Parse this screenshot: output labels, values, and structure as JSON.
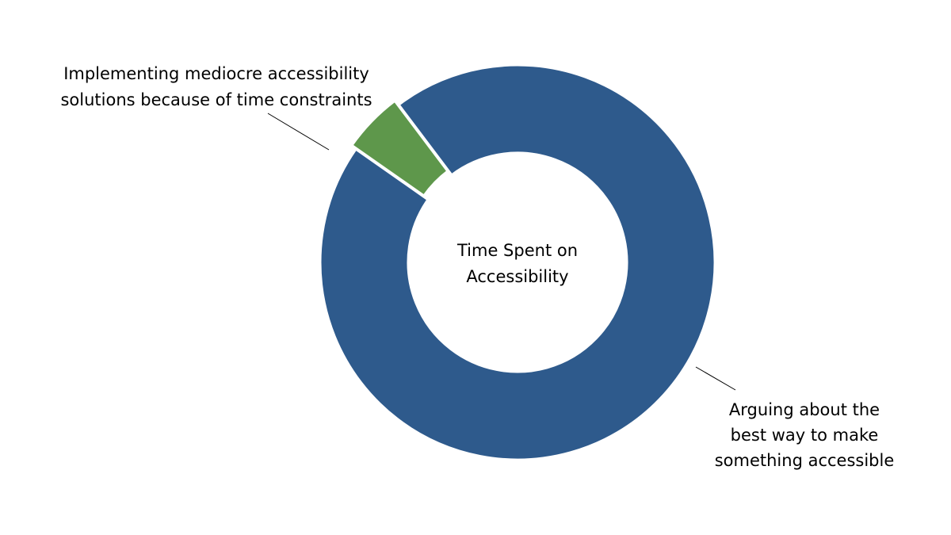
{
  "chart_data": {
    "type": "pie",
    "title": "Time Spent on Accessibility",
    "series": [
      {
        "name": "Arguing about the best way to make something accessible",
        "label_lines": [
          "Arguing about the",
          "best way to make",
          "something accessible"
        ],
        "value": 95,
        "color": "#2e5a8c"
      },
      {
        "name": "Implementing mediocre accessibility solutions because of time constraints",
        "label_lines": [
          "Implementing mediocre accessibility",
          "solutions because of time constraints"
        ],
        "value": 5,
        "color": "#5e974b"
      }
    ],
    "center_label_lines": [
      "Time Spent on",
      "Accessibility"
    ],
    "legend": "none"
  }
}
